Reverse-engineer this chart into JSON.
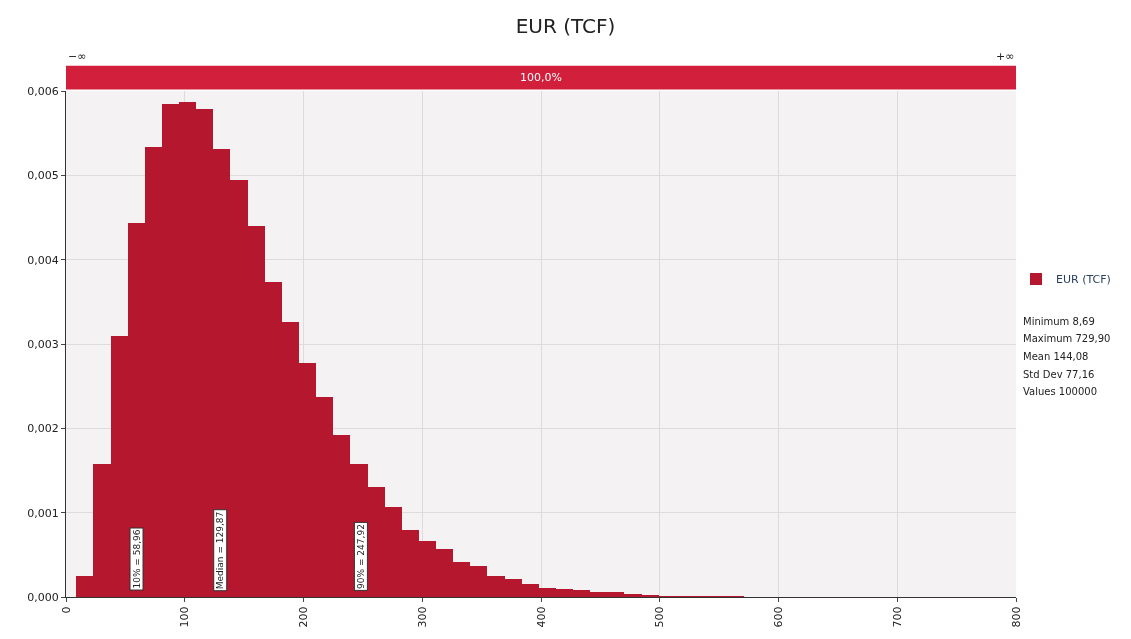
{
  "chart_data": {
    "type": "histogram",
    "title": "EUR (TCF)",
    "bins": [
      8.69,
      23.11,
      37.54,
      51.96,
      66.39,
      80.81,
      95.24,
      109.66,
      124.08,
      138.51,
      152.93,
      167.36,
      181.78,
      196.21,
      210.63,
      225.05,
      239.48,
      253.9,
      268.33,
      282.75,
      297.18,
      311.6,
      326.02,
      340.45,
      354.87,
      369.3,
      383.72,
      398.15,
      412.57,
      426.99,
      441.42,
      455.84,
      470.27,
      484.69,
      499.12,
      513.54,
      527.96,
      542.39,
      556.81,
      571.24,
      585.66,
      600.09,
      614.51,
      628.93,
      643.36,
      657.78,
      672.21,
      686.63,
      701.06,
      715.48,
      729.9
    ],
    "series": [
      {
        "name": "EUR (TCF)",
        "color": "#b5172f",
        "values": [
          0.00025,
          0.00158,
          0.00309,
          0.00444,
          0.00534,
          0.00585,
          0.00587,
          0.00579,
          0.00531,
          0.00495,
          0.0044,
          0.00374,
          0.00326,
          0.00278,
          0.00237,
          0.00192,
          0.00158,
          0.00131,
          0.00107,
          0.00079,
          0.00066,
          0.00057,
          0.00042,
          0.00037,
          0.00025,
          0.00021,
          0.00015,
          0.00011,
          0.0001,
          8e-05,
          6e-05,
          6e-05,
          4e-05,
          2e-05,
          1e-05,
          1e-05,
          1e-05,
          1e-05,
          1e-05,
          0,
          0,
          0,
          0,
          0,
          0,
          0,
          0,
          0,
          0,
          0
        ]
      }
    ],
    "xlim": [
      0,
      800
    ],
    "xticks": [
      0,
      100,
      200,
      300,
      400,
      500,
      600,
      700,
      800
    ],
    "ylim": [
      0,
      0.006
    ],
    "yticks": [
      {
        "value": 0,
        "label": "0,000"
      },
      {
        "value": 0.001,
        "label": "0,001"
      },
      {
        "value": 0.002,
        "label": "0,002"
      },
      {
        "value": 0.003,
        "label": "0,003"
      },
      {
        "value": 0.004,
        "label": "0,004"
      },
      {
        "value": 0.005,
        "label": "0,005"
      },
      {
        "value": 0.006,
        "label": "0,006"
      }
    ],
    "bands": [
      {
        "axis": "x",
        "from": 0,
        "to": 800,
        "label": "100,0%"
      }
    ],
    "annotations": [
      {
        "text": "10% = 58,96",
        "x": 58.96,
        "y": 0
      },
      {
        "text": "Median = 129,87",
        "x": 129.87,
        "y": 0
      },
      {
        "text": "90% = 247,92",
        "x": 247.92,
        "y": 0
      },
      "−∞",
      "+∞",
      "Minimum 8,69",
      "Maximum 729,90",
      "Mean 144,08",
      "Std Dev 77,16",
      "Values 100000"
    ],
    "grid": true,
    "legend": "right"
  }
}
